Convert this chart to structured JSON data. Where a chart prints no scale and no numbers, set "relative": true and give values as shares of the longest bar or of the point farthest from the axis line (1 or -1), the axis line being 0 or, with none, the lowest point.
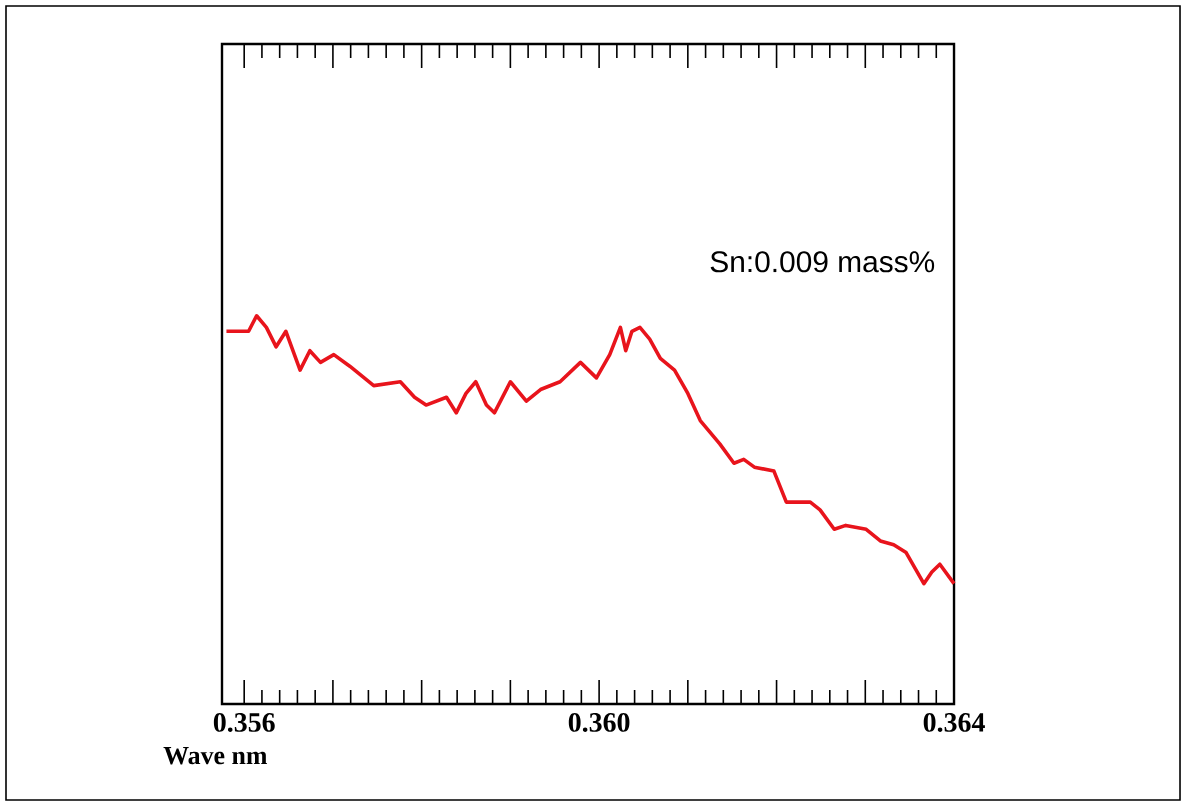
{
  "chart_data": {
    "type": "line",
    "xlabel": "Wave nm",
    "annotations": [
      "Sn:0.009 mass%"
    ],
    "relative": true,
    "color": "#e8141c",
    "xlim": [
      0.35575,
      0.364
    ],
    "xticks": [
      0.356,
      {
        "value": 0.357,
        "label": null
      },
      {
        "value": 0.358,
        "label": null
      },
      {
        "value": 0.359,
        "label": null
      },
      {
        "value": 0.36,
        "label": "0.360"
      },
      {
        "value": 0.361,
        "label": null
      },
      {
        "value": 0.362,
        "label": null
      },
      {
        "value": 0.363,
        "label": null
      },
      0.364
    ],
    "x": [
      0.3558,
      0.35591,
      0.35605,
      0.35614,
      0.35625,
      0.35636,
      0.35647,
      0.35663,
      0.35674,
      0.35686,
      0.35701,
      0.35719,
      0.35746,
      0.35776,
      0.35792,
      0.35805,
      0.35828,
      0.35839,
      0.3585,
      0.35861,
      0.35873,
      0.35882,
      0.359,
      0.35918,
      0.35934,
      0.35956,
      0.35979,
      0.35997,
      0.36012,
      0.36024,
      0.3603,
      0.36037,
      0.36046,
      0.36057,
      0.36069,
      0.36085,
      0.361,
      0.36114,
      0.36136,
      0.36152,
      0.36163,
      0.36175,
      0.36197,
      0.36211,
      0.36238,
      0.36249,
      0.36265,
      0.36278,
      0.36301,
      0.36317,
      0.36332,
      0.36346,
      0.36366,
      0.36375,
      0.36384,
      0.364
    ],
    "values": [
      0.96,
      0.96,
      0.96,
      1.0,
      0.97,
      0.92,
      0.96,
      0.86,
      0.91,
      0.88,
      0.9,
      0.87,
      0.82,
      0.83,
      0.79,
      0.77,
      0.79,
      0.75,
      0.8,
      0.83,
      0.77,
      0.75,
      0.83,
      0.78,
      0.81,
      0.83,
      0.88,
      0.84,
      0.9,
      0.97,
      0.91,
      0.96,
      0.97,
      0.94,
      0.89,
      0.86,
      0.8,
      0.73,
      0.67,
      0.62,
      0.63,
      0.61,
      0.6,
      0.52,
      0.52,
      0.5,
      0.45,
      0.46,
      0.45,
      0.42,
      0.41,
      0.39,
      0.31,
      0.34,
      0.36,
      0.31
    ]
  }
}
